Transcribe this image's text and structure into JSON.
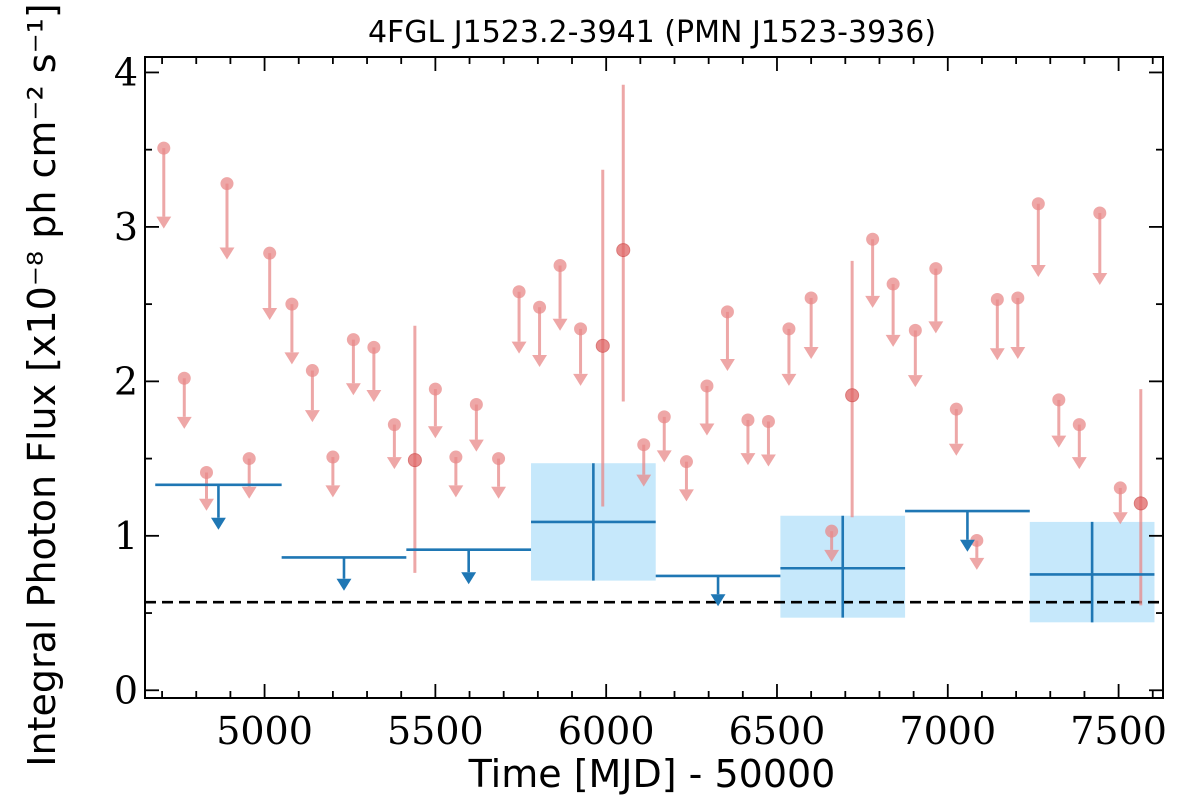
{
  "chart_data": {
    "type": "scatter",
    "title": "4FGL J1523.2-3941 (PMN J1523-3936)",
    "xlabel": "Time [MJD] - 50000",
    "ylabel": "Integral Photon Flux [x10⁻⁸ ph cm⁻² s⁻¹]",
    "xlim": [
      4650,
      7630
    ],
    "ylim": [
      -0.05,
      4.1
    ],
    "xticks": [
      5000,
      5500,
      6000,
      6500,
      7000,
      7500
    ],
    "yticks": [
      0,
      1,
      2,
      3,
      4
    ],
    "grid": false,
    "reference_level": 0.57,
    "colors": {
      "short_bins": "#e88a8a",
      "long_bins": "#1f77b4",
      "long_bins_fill": "#c6e8fb",
      "reference_line": "#000000"
    },
    "series": [
      {
        "kind": "short-bin-upper-limits",
        "points": [
          {
            "x": 4705,
            "y": 3.51
          },
          {
            "x": 4765,
            "y": 2.02
          },
          {
            "x": 4830,
            "y": 1.41
          },
          {
            "x": 4890,
            "y": 3.28
          },
          {
            "x": 4955,
            "y": 1.5
          },
          {
            "x": 5015,
            "y": 2.83
          },
          {
            "x": 5080,
            "y": 2.5
          },
          {
            "x": 5140,
            "y": 2.07
          },
          {
            "x": 5200,
            "y": 1.51
          },
          {
            "x": 5260,
            "y": 2.27
          },
          {
            "x": 5320,
            "y": 2.22
          },
          {
            "x": 5380,
            "y": 1.72
          },
          {
            "x": 5500,
            "y": 1.95
          },
          {
            "x": 5560,
            "y": 1.51
          },
          {
            "x": 5620,
            "y": 1.85
          },
          {
            "x": 5685,
            "y": 1.5
          },
          {
            "x": 5745,
            "y": 2.58
          },
          {
            "x": 5805,
            "y": 2.48
          },
          {
            "x": 5865,
            "y": 2.75
          },
          {
            "x": 5925,
            "y": 2.34
          },
          {
            "x": 6110,
            "y": 1.59
          },
          {
            "x": 6170,
            "y": 1.77
          },
          {
            "x": 6235,
            "y": 1.48
          },
          {
            "x": 6295,
            "y": 1.97
          },
          {
            "x": 6355,
            "y": 2.45
          },
          {
            "x": 6415,
            "y": 1.75
          },
          {
            "x": 6475,
            "y": 1.74
          },
          {
            "x": 6535,
            "y": 2.34
          },
          {
            "x": 6600,
            "y": 2.54
          },
          {
            "x": 6660,
            "y": 1.03
          },
          {
            "x": 6780,
            "y": 2.92
          },
          {
            "x": 6840,
            "y": 2.63
          },
          {
            "x": 6905,
            "y": 2.33
          },
          {
            "x": 6965,
            "y": 2.73
          },
          {
            "x": 7025,
            "y": 1.82
          },
          {
            "x": 7085,
            "y": 0.97
          },
          {
            "x": 7145,
            "y": 2.53
          },
          {
            "x": 7205,
            "y": 2.54
          },
          {
            "x": 7265,
            "y": 3.15
          },
          {
            "x": 7325,
            "y": 1.88
          },
          {
            "x": 7385,
            "y": 1.72
          },
          {
            "x": 7445,
            "y": 3.09
          },
          {
            "x": 7505,
            "y": 1.31
          }
        ]
      },
      {
        "kind": "short-bin-detections",
        "points": [
          {
            "x": 5440,
            "y": 1.49,
            "ylow": 0.76,
            "yhigh": 2.36
          },
          {
            "x": 5990,
            "y": 2.23,
            "ylow": 1.19,
            "yhigh": 3.37
          },
          {
            "x": 6050,
            "y": 2.85,
            "ylow": 1.87,
            "yhigh": 3.92
          },
          {
            "x": 6720,
            "y": 1.91,
            "ylow": 1.12,
            "yhigh": 2.78
          },
          {
            "x": 7565,
            "y": 1.21,
            "ylow": 0.55,
            "yhigh": 1.95
          }
        ]
      },
      {
        "kind": "long-bin-upper-limits",
        "bins": [
          {
            "x0": 4680,
            "x1": 5050,
            "y": 1.33
          },
          {
            "x0": 5050,
            "x1": 5415,
            "y": 0.86
          },
          {
            "x0": 5415,
            "x1": 5780,
            "y": 0.91
          },
          {
            "x0": 6145,
            "x1": 6510,
            "y": 0.74
          },
          {
            "x0": 6875,
            "x1": 7240,
            "y": 1.16
          }
        ]
      },
      {
        "kind": "long-bin-detections",
        "bins": [
          {
            "x0": 5780,
            "x1": 6145,
            "y": 1.09,
            "ylow": 0.71,
            "yhigh": 1.47
          },
          {
            "x0": 6510,
            "x1": 6875,
            "y": 0.79,
            "ylow": 0.47,
            "yhigh": 1.13
          },
          {
            "x0": 7240,
            "x1": 7605,
            "y": 0.75,
            "ylow": 0.44,
            "yhigh": 1.09
          }
        ]
      }
    ]
  }
}
